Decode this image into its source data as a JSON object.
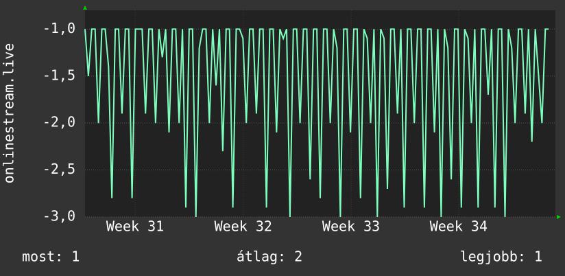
{
  "chart_data": {
    "type": "line",
    "y_label": "onlinestream.live",
    "x": [
      0,
      1,
      2,
      3,
      4,
      5,
      6,
      7,
      8,
      9,
      10,
      11,
      12,
      13,
      14,
      15,
      16,
      17,
      18,
      19,
      20,
      21,
      22,
      23,
      24,
      25,
      26,
      27,
      28,
      29,
      30,
      31,
      32,
      33,
      34,
      35,
      36,
      37,
      38,
      39,
      40,
      41,
      42,
      43,
      44,
      45,
      46,
      47,
      48,
      49,
      50,
      51,
      52,
      53,
      54,
      55,
      56,
      57,
      58,
      59,
      60,
      61,
      62,
      63,
      64,
      65,
      66,
      67,
      68,
      69,
      70,
      71,
      72,
      73,
      74,
      75,
      76,
      77,
      78,
      79,
      80,
      81,
      82,
      83,
      84,
      85,
      86,
      87,
      88,
      89,
      90,
      91,
      92,
      93,
      94,
      95,
      96,
      97,
      98,
      99,
      100,
      101,
      102,
      103,
      104,
      105,
      106,
      107,
      108,
      109,
      110,
      111,
      112,
      113,
      114,
      115,
      116,
      117,
      118,
      119,
      120,
      121,
      122,
      123,
      124,
      125,
      126,
      127,
      128,
      129,
      130,
      131,
      132,
      133,
      134,
      135,
      136,
      137,
      138
    ],
    "series": [
      {
        "name": "onlinestream.live",
        "color": "#7dffbe",
        "values": [
          -1,
          -1.5,
          -1,
          -1,
          -2,
          -1,
          -1,
          -1.4,
          -2.8,
          -1,
          -1,
          -1.9,
          -1,
          -1,
          -2.8,
          -1,
          -1,
          -1,
          -1.9,
          -1,
          -1,
          -2.0,
          -1,
          -1.3,
          -1,
          -2.1,
          -1,
          -1,
          -2.0,
          -1,
          -2.9,
          -1,
          -1,
          -3.0,
          -1.2,
          -1,
          -1,
          -2.0,
          -1,
          -1.6,
          -1,
          -2.3,
          -1,
          -1,
          -2.9,
          -1,
          -1,
          -1.1,
          -2.0,
          -1,
          -1,
          -1.9,
          -1,
          -1,
          -2.9,
          -1,
          -1,
          -2.1,
          -1,
          -1.1,
          -1,
          -3.0,
          -1,
          -1,
          -2.0,
          -1,
          -1,
          -2.6,
          -1,
          -1,
          -2.8,
          -1,
          -1,
          -2.0,
          -1,
          -1.2,
          -3.0,
          -1,
          -1,
          -2.1,
          -1,
          -1,
          -2.8,
          -1,
          -1.1,
          -2.0,
          -1,
          -3.0,
          -1,
          -1.1,
          -2.7,
          -1,
          -1,
          -1.9,
          -1,
          -2.9,
          -1,
          -1,
          -2.0,
          -1,
          -1,
          -2.9,
          -1,
          -1,
          -2.1,
          -1,
          -3.0,
          -1,
          -1.2,
          -2.6,
          -1,
          -1,
          -2.9,
          -1,
          -1.1,
          -2.0,
          -1,
          -2.9,
          -1,
          -1,
          -1.7,
          -1,
          -2.9,
          -1,
          -1,
          -3.0,
          -1,
          -1.2,
          -2.0,
          -1,
          -1,
          -1.9,
          -1,
          -2.2,
          -1,
          -1.5,
          -2.0,
          -1,
          -1
        ]
      }
    ],
    "xlim": [
      0,
      140
    ],
    "xticks": [
      {
        "value": 14.9,
        "label": "Week 31"
      },
      {
        "value": 47.1,
        "label": "Week 32"
      },
      {
        "value": 79.2,
        "label": "Week 33"
      },
      {
        "value": 111.2,
        "label": "Week 34"
      }
    ],
    "ylim": [
      -3.0,
      -0.8
    ],
    "yticks": [
      {
        "value": -3.0,
        "label": "-3,0"
      },
      {
        "value": -2.5,
        "label": "-2,5"
      },
      {
        "value": -2.0,
        "label": "-2,0"
      },
      {
        "value": -1.5,
        "label": "-1,5"
      },
      {
        "value": -1.0,
        "label": "-1,0"
      }
    ],
    "grid": true,
    "stats": [
      "most: 1",
      "átlag: 2",
      "legjobb: 1"
    ]
  }
}
